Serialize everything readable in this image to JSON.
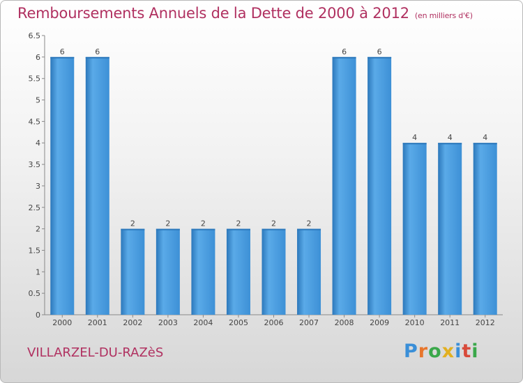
{
  "header": {
    "title": "Remboursements Annuels de la Dette de 2000 à 2012",
    "subtitle": "(en milliers d'€)"
  },
  "footer": {
    "commune": "VILLARZEL-DU-RAZèS",
    "logo": {
      "letters": [
        "P",
        "r",
        "o",
        "x",
        "i",
        "t",
        "i"
      ],
      "colors": [
        "#3a8fd8",
        "#e8762c",
        "#3aa84a",
        "#e2b020",
        "#3a8fd8",
        "#d84a3a",
        "#3aa84a"
      ]
    }
  },
  "chart_data": {
    "type": "bar",
    "categories": [
      "2000",
      "2001",
      "2002",
      "2003",
      "2004",
      "2005",
      "2006",
      "2007",
      "2008",
      "2009",
      "2010",
      "2011",
      "2012"
    ],
    "values": [
      6,
      6,
      2,
      2,
      2,
      2,
      2,
      2,
      6,
      6,
      4,
      4,
      4
    ],
    "data_labels": [
      "6",
      "6",
      "2",
      "2",
      "2",
      "2",
      "2",
      "2",
      "6",
      "6",
      "4",
      "4",
      "4"
    ],
    "ylim": [
      0,
      6.5
    ],
    "yticks": [
      0,
      0.5,
      1,
      1.5,
      2,
      2.5,
      3,
      3.5,
      4,
      4.5,
      5,
      5.5,
      6,
      6.5
    ],
    "ytick_labels": [
      "0",
      "0.5",
      "1",
      "1.5",
      "2",
      "2.5",
      "3",
      "3.5",
      "4",
      "4.5",
      "5",
      "5.5",
      "6",
      "6.5"
    ],
    "grid": false,
    "bar_color": "#3a8fd8"
  }
}
